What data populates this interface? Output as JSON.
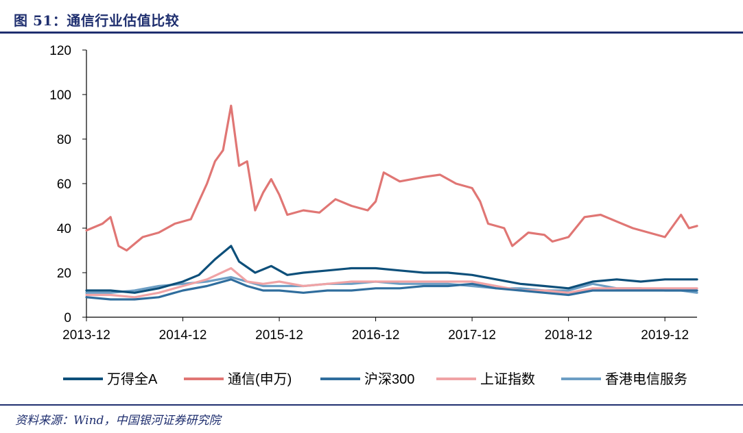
{
  "header": {
    "title": "图 51：通信行业估值比较"
  },
  "footer": {
    "source": "资料来源：Wind，中国银河证券研究院"
  },
  "colors": {
    "wande": "#0d4f7a",
    "tongxin": "#e07674",
    "hushen": "#2f6d9d",
    "shangzheng": "#f0a3a5",
    "xianggang": "#6c9ec4",
    "title": "#1f2f6f"
  },
  "chart_data": {
    "type": "line",
    "title": "通信行业估值比较",
    "xlabel": "",
    "ylabel": "",
    "ylim": [
      0,
      120
    ],
    "yticks": [
      0,
      20,
      40,
      60,
      80,
      100,
      120
    ],
    "xlim": [
      "2013-12",
      "2020-04"
    ],
    "xticks": [
      "2013-12",
      "2014-12",
      "2015-12",
      "2016-12",
      "2017-12",
      "2018-12",
      "2019-12"
    ],
    "grid": false,
    "legend_position": "bottom",
    "series": [
      {
        "name": "万得全A",
        "color_key": "wande",
        "points": [
          [
            "2013-12",
            12
          ],
          [
            "2014-03",
            12
          ],
          [
            "2014-06",
            11
          ],
          [
            "2014-09",
            13
          ],
          [
            "2014-12",
            16
          ],
          [
            "2015-02",
            19
          ],
          [
            "2015-04",
            26
          ],
          [
            "2015-06",
            32
          ],
          [
            "2015-07",
            25
          ],
          [
            "2015-09",
            20
          ],
          [
            "2015-11",
            23
          ],
          [
            "2016-01",
            19
          ],
          [
            "2016-03",
            20
          ],
          [
            "2016-06",
            21
          ],
          [
            "2016-09",
            22
          ],
          [
            "2016-12",
            22
          ],
          [
            "2017-03",
            21
          ],
          [
            "2017-06",
            20
          ],
          [
            "2017-09",
            20
          ],
          [
            "2017-12",
            19
          ],
          [
            "2018-03",
            17
          ],
          [
            "2018-06",
            15
          ],
          [
            "2018-09",
            14
          ],
          [
            "2018-12",
            13
          ],
          [
            "2019-03",
            16
          ],
          [
            "2019-06",
            17
          ],
          [
            "2019-09",
            16
          ],
          [
            "2019-12",
            17
          ],
          [
            "2020-02",
            17
          ],
          [
            "2020-04",
            17
          ]
        ]
      },
      {
        "name": "通信(申万)",
        "color_key": "tongxin",
        "points": [
          [
            "2013-12",
            39
          ],
          [
            "2014-02",
            42
          ],
          [
            "2014-03",
            45
          ],
          [
            "2014-04",
            32
          ],
          [
            "2014-05",
            30
          ],
          [
            "2014-07",
            36
          ],
          [
            "2014-09",
            38
          ],
          [
            "2014-11",
            42
          ],
          [
            "2015-01",
            44
          ],
          [
            "2015-02",
            52
          ],
          [
            "2015-03",
            60
          ],
          [
            "2015-04",
            70
          ],
          [
            "2015-05",
            75
          ],
          [
            "2015-06",
            95
          ],
          [
            "2015-07",
            68
          ],
          [
            "2015-08",
            70
          ],
          [
            "2015-09",
            48
          ],
          [
            "2015-10",
            56
          ],
          [
            "2015-11",
            62
          ],
          [
            "2015-12",
            55
          ],
          [
            "2016-01",
            46
          ],
          [
            "2016-03",
            48
          ],
          [
            "2016-05",
            47
          ],
          [
            "2016-07",
            53
          ],
          [
            "2016-09",
            50
          ],
          [
            "2016-11",
            48
          ],
          [
            "2016-12",
            52
          ],
          [
            "2017-01",
            65
          ],
          [
            "2017-03",
            61
          ],
          [
            "2017-06",
            63
          ],
          [
            "2017-08",
            64
          ],
          [
            "2017-10",
            60
          ],
          [
            "2017-12",
            58
          ],
          [
            "2018-01",
            52
          ],
          [
            "2018-02",
            42
          ],
          [
            "2018-04",
            40
          ],
          [
            "2018-05",
            32
          ],
          [
            "2018-07",
            38
          ],
          [
            "2018-09",
            37
          ],
          [
            "2018-10",
            34
          ],
          [
            "2018-12",
            36
          ],
          [
            "2019-02",
            45
          ],
          [
            "2019-04",
            46
          ],
          [
            "2019-06",
            43
          ],
          [
            "2019-08",
            40
          ],
          [
            "2019-10",
            38
          ],
          [
            "2019-12",
            36
          ],
          [
            "2020-02",
            46
          ],
          [
            "2020-03",
            40
          ],
          [
            "2020-04",
            41
          ]
        ]
      },
      {
        "name": "沪深300",
        "color_key": "hushen",
        "points": [
          [
            "2013-12",
            9
          ],
          [
            "2014-03",
            8
          ],
          [
            "2014-06",
            8
          ],
          [
            "2014-09",
            9
          ],
          [
            "2014-12",
            12
          ],
          [
            "2015-03",
            14
          ],
          [
            "2015-06",
            17
          ],
          [
            "2015-08",
            14
          ],
          [
            "2015-10",
            12
          ],
          [
            "2015-12",
            12
          ],
          [
            "2016-03",
            11
          ],
          [
            "2016-06",
            12
          ],
          [
            "2016-09",
            12
          ],
          [
            "2016-12",
            13
          ],
          [
            "2017-03",
            13
          ],
          [
            "2017-06",
            14
          ],
          [
            "2017-09",
            14
          ],
          [
            "2017-12",
            15
          ],
          [
            "2018-03",
            13
          ],
          [
            "2018-06",
            12
          ],
          [
            "2018-09",
            11
          ],
          [
            "2018-12",
            10
          ],
          [
            "2019-03",
            12
          ],
          [
            "2019-06",
            12
          ],
          [
            "2019-09",
            12
          ],
          [
            "2019-12",
            12
          ],
          [
            "2020-02",
            12
          ],
          [
            "2020-04",
            12
          ]
        ]
      },
      {
        "name": "上证指数",
        "color_key": "shangzheng",
        "points": [
          [
            "2013-12",
            10
          ],
          [
            "2014-03",
            10
          ],
          [
            "2014-06",
            9
          ],
          [
            "2014-09",
            11
          ],
          [
            "2014-12",
            14
          ],
          [
            "2015-03",
            17
          ],
          [
            "2015-06",
            22
          ],
          [
            "2015-08",
            16
          ],
          [
            "2015-10",
            15
          ],
          [
            "2015-12",
            16
          ],
          [
            "2016-03",
            14
          ],
          [
            "2016-06",
            15
          ],
          [
            "2016-09",
            16
          ],
          [
            "2016-12",
            16
          ],
          [
            "2017-03",
            16
          ],
          [
            "2017-06",
            16
          ],
          [
            "2017-09",
            16
          ],
          [
            "2017-12",
            16
          ],
          [
            "2018-03",
            14
          ],
          [
            "2018-06",
            12
          ],
          [
            "2018-09",
            12
          ],
          [
            "2018-12",
            11
          ],
          [
            "2019-03",
            13
          ],
          [
            "2019-06",
            13
          ],
          [
            "2019-09",
            13
          ],
          [
            "2019-12",
            13
          ],
          [
            "2020-02",
            13
          ],
          [
            "2020-04",
            13
          ]
        ]
      },
      {
        "name": "香港电信服务",
        "color_key": "xianggang",
        "points": [
          [
            "2013-12",
            11
          ],
          [
            "2014-03",
            11
          ],
          [
            "2014-06",
            12
          ],
          [
            "2014-09",
            14
          ],
          [
            "2014-12",
            15
          ],
          [
            "2015-03",
            16
          ],
          [
            "2015-06",
            18
          ],
          [
            "2015-08",
            16
          ],
          [
            "2015-10",
            14
          ],
          [
            "2015-12",
            14
          ],
          [
            "2016-03",
            14
          ],
          [
            "2016-06",
            15
          ],
          [
            "2016-09",
            15
          ],
          [
            "2016-12",
            16
          ],
          [
            "2017-03",
            15
          ],
          [
            "2017-06",
            15
          ],
          [
            "2017-09",
            15
          ],
          [
            "2017-12",
            14
          ],
          [
            "2018-03",
            13
          ],
          [
            "2018-06",
            13
          ],
          [
            "2018-09",
            12
          ],
          [
            "2018-12",
            12
          ],
          [
            "2019-03",
            15
          ],
          [
            "2019-06",
            13
          ],
          [
            "2019-09",
            13
          ],
          [
            "2019-12",
            12
          ],
          [
            "2020-02",
            12
          ],
          [
            "2020-04",
            11
          ]
        ]
      }
    ]
  }
}
